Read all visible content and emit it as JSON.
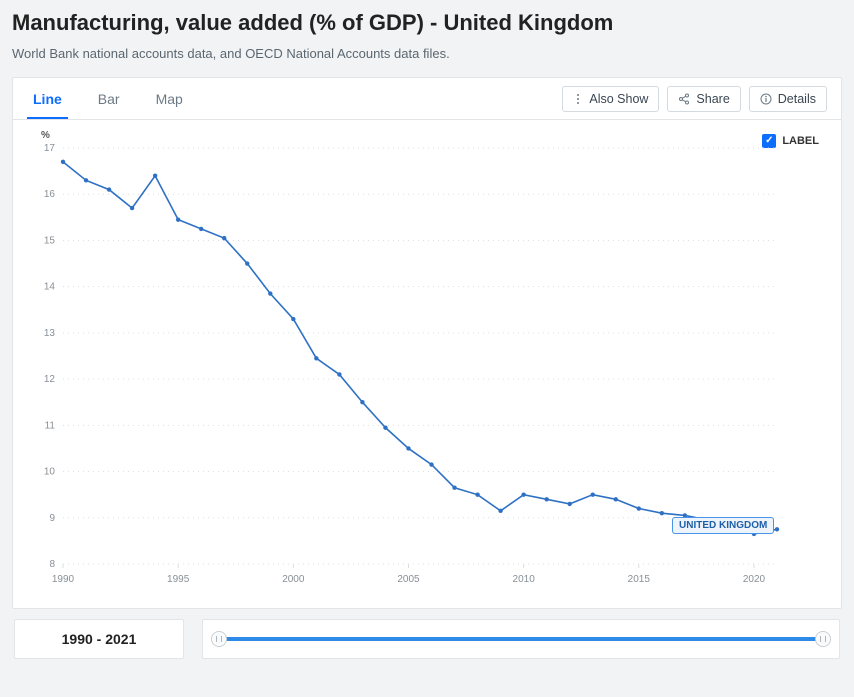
{
  "header": {
    "title": "Manufacturing, value added (% of GDP) - United Kingdom",
    "subtitle": "World Bank national accounts data, and OECD National Accounts data files."
  },
  "tabs": {
    "items": [
      "Line",
      "Bar",
      "Map"
    ],
    "active": 0
  },
  "actions": {
    "also_show": "Also Show",
    "share": "Share",
    "details": "Details"
  },
  "legend": {
    "label_toggle_text": "LABEL",
    "checked": true
  },
  "chart": {
    "type": "line",
    "series_label": "UNITED KINGDOM",
    "y_unit": "%",
    "y_ticks": [
      8,
      9,
      10,
      11,
      12,
      13,
      14,
      15,
      16,
      17
    ],
    "ylim": [
      8,
      17
    ],
    "x_ticks": [
      1990,
      1995,
      2000,
      2005,
      2010,
      2015,
      2020
    ],
    "xlim": [
      1990,
      2021
    ],
    "years": [
      1990,
      1991,
      1992,
      1993,
      1994,
      1995,
      1996,
      1997,
      1998,
      1999,
      2000,
      2001,
      2002,
      2003,
      2004,
      2005,
      2006,
      2007,
      2008,
      2009,
      2010,
      2011,
      2012,
      2013,
      2014,
      2015,
      2016,
      2017,
      2018,
      2019,
      2020,
      2021
    ],
    "values": [
      16.7,
      16.3,
      16.1,
      15.7,
      16.4,
      15.45,
      15.25,
      15.05,
      14.5,
      13.85,
      13.3,
      12.45,
      12.1,
      11.5,
      10.95,
      10.5,
      10.15,
      9.65,
      9.5,
      9.15,
      9.5,
      9.4,
      9.3,
      9.5,
      9.4,
      9.2,
      9.1,
      9.05,
      8.95,
      8.9,
      8.65,
      8.75
    ],
    "grid_color": "#dcdfe2",
    "axis_text_color": "#888f96",
    "line_color": "#2e71c4",
    "marker_color": "#2e71c4",
    "marker_radius": 2.2,
    "line_width": 1.6,
    "background_color": "#ffffff",
    "tick_fontsize": 10,
    "badge_bg": "#eef4fc",
    "badge_border": "#4a94e8",
    "badge_text": "#1f5fa8"
  },
  "time_range": {
    "label": "1990 - 2021",
    "start": 1990,
    "end": 2021
  }
}
